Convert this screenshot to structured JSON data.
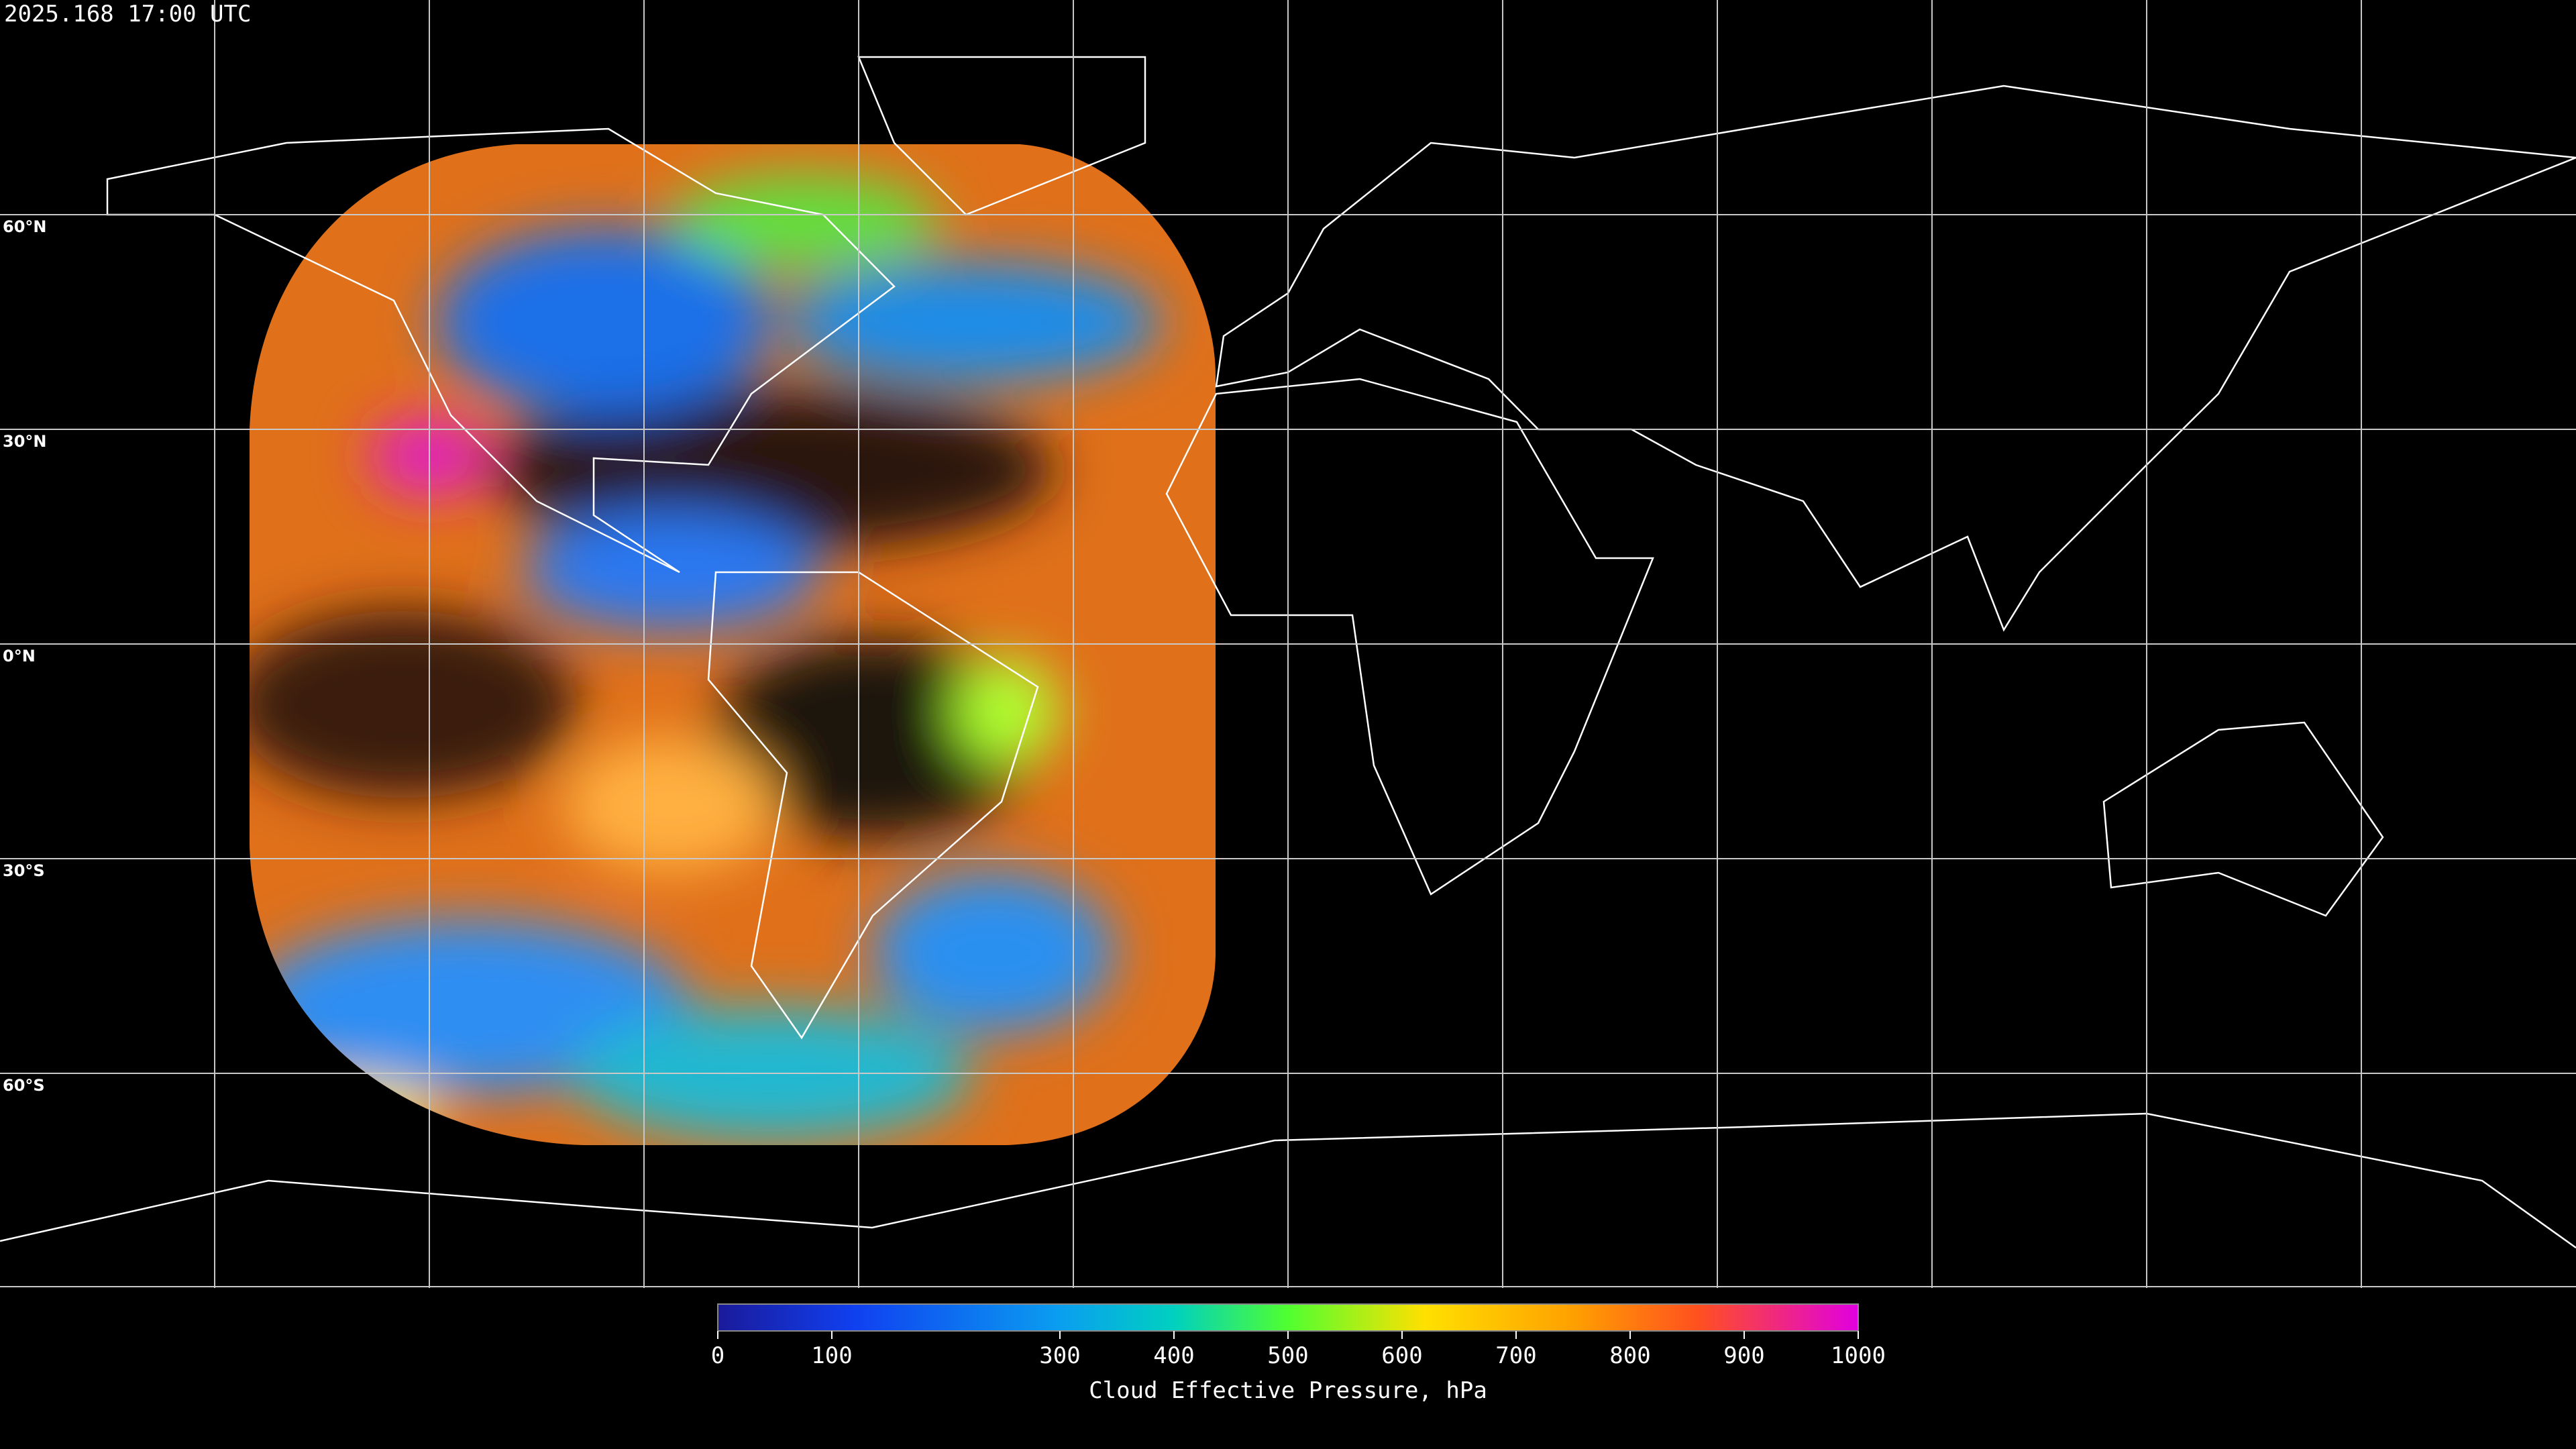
{
  "timestamp": "2025.168 17:00 UTC",
  "map": {
    "lat_labels": [
      "60°N",
      "30°N",
      "0°N",
      "30°S",
      "60°S"
    ]
  },
  "colorbar": {
    "label": "Cloud Effective Pressure, hPa",
    "range": [
      0,
      1000
    ],
    "ticks": [
      0,
      100,
      300,
      400,
      500,
      600,
      700,
      800,
      900,
      1000
    ]
  }
}
